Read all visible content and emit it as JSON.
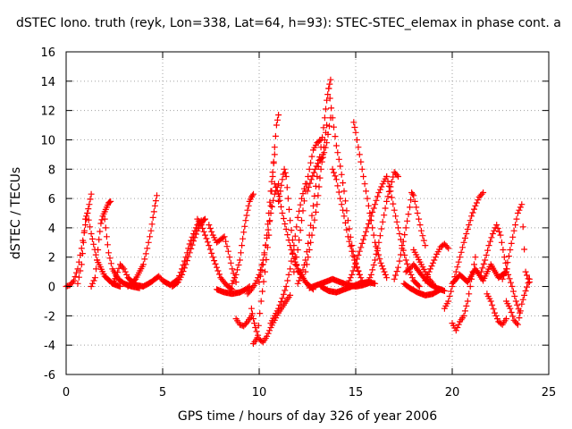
{
  "title": "dSTEC Iono. truth (reyk, Lon=338, Lat=64, h=93): STEC-STEC_elemax in phase cont. a",
  "chart_data": {
    "type": "scatter",
    "title": "dSTEC Iono. truth (reyk, Lon=338, Lat=64, h=93): STEC-STEC_elemax in phase cont. a",
    "xlabel": "GPS time / hours of day 326 of year 2006",
    "ylabel": "dSTEC  / TECUs",
    "xlim": [
      0,
      25
    ],
    "ylim": [
      -6,
      16
    ],
    "xticks": [
      0,
      5,
      10,
      15,
      20,
      25
    ],
    "yticks": [
      -6,
      -4,
      -2,
      0,
      2,
      4,
      6,
      8,
      10,
      12,
      14,
      16
    ],
    "grid": true,
    "marker": "plus",
    "color": "#ff0000",
    "series": [
      {
        "x": [
          0.0,
          0.2,
          0.4,
          0.6,
          0.8,
          1.0,
          1.1,
          1.2,
          1.3
        ],
        "y": [
          0.0,
          0.1,
          0.4,
          1.2,
          2.6,
          4.2,
          5.0,
          5.6,
          6.3
        ]
      },
      {
        "x": [
          0.6,
          0.8,
          0.9,
          1.0,
          1.1,
          1.3,
          1.6,
          2.0,
          2.4,
          2.8
        ],
        "y": [
          0.2,
          1.5,
          3.0,
          4.6,
          5.0,
          3.6,
          1.8,
          0.7,
          0.2,
          0.0
        ]
      },
      {
        "x": [
          1.3,
          1.5,
          1.6,
          1.7,
          1.8,
          1.9,
          2.0,
          2.1,
          2.2,
          2.3
        ],
        "y": [
          0.0,
          0.6,
          1.8,
          3.2,
          4.3,
          4.8,
          5.1,
          5.4,
          5.7,
          5.8
        ]
      },
      {
        "x": [
          2.0,
          2.1,
          2.2,
          2.4,
          2.7,
          3.0,
          3.4,
          3.8
        ],
        "y": [
          4.6,
          3.4,
          2.3,
          1.2,
          0.5,
          0.2,
          0.0,
          -0.1
        ]
      },
      {
        "x": [
          2.4,
          2.6,
          2.8,
          3.0,
          3.2,
          3.6,
          4.0
        ],
        "y": [
          0.2,
          0.7,
          1.5,
          1.2,
          0.6,
          0.1,
          0.0
        ]
      },
      {
        "x": [
          3.2,
          3.6,
          4.0,
          4.2,
          4.4,
          4.5,
          4.6,
          4.7
        ],
        "y": [
          0.0,
          0.5,
          1.5,
          2.6,
          3.8,
          4.7,
          5.5,
          6.2
        ]
      },
      {
        "x": [
          4.0,
          4.4,
          4.8,
          5.0,
          5.4,
          5.8,
          6.0,
          6.2,
          6.4,
          6.6,
          6.8,
          7.0
        ],
        "y": [
          0.0,
          0.3,
          0.7,
          0.4,
          0.1,
          0.5,
          1.2,
          2.0,
          2.9,
          3.6,
          4.2,
          4.5
        ]
      },
      {
        "x": [
          5.5,
          5.8,
          6.0,
          6.2,
          6.4,
          6.6,
          6.8,
          7.0,
          7.1,
          7.2
        ],
        "y": [
          0.0,
          0.3,
          0.8,
          1.5,
          2.3,
          3.1,
          3.8,
          4.3,
          4.5,
          4.6
        ]
      },
      {
        "x": [
          6.8,
          7.0,
          7.2,
          7.4,
          7.6,
          7.8,
          8.0,
          8.3,
          8.6
        ],
        "y": [
          4.6,
          4.2,
          3.5,
          2.8,
          2.0,
          1.3,
          0.6,
          0.1,
          -0.2
        ]
      },
      {
        "x": [
          7.4,
          7.6,
          7.8,
          8.0,
          8.2,
          8.4,
          8.6,
          8.8
        ],
        "y": [
          4.2,
          3.5,
          3.0,
          3.2,
          3.4,
          2.4,
          1.2,
          0.3
        ]
      },
      {
        "x": [
          7.8,
          8.2,
          8.6,
          9.0,
          9.3,
          9.5
        ],
        "y": [
          -0.2,
          -0.4,
          -0.5,
          -0.4,
          -0.2,
          0.0
        ]
      },
      {
        "x": [
          8.6,
          8.8,
          9.0,
          9.1,
          9.2,
          9.3,
          9.4,
          9.5,
          9.6,
          9.7
        ],
        "y": [
          0.2,
          0.8,
          1.8,
          2.8,
          3.7,
          4.5,
          5.2,
          5.8,
          6.1,
          6.3
        ]
      },
      {
        "x": [
          8.8,
          9.0,
          9.2,
          9.4,
          9.6
        ],
        "y": [
          -2.2,
          -2.6,
          -2.7,
          -2.4,
          -2.0
        ]
      },
      {
        "x": [
          9.4,
          9.6,
          9.8,
          10.0,
          10.2,
          10.4,
          10.6,
          10.8,
          11.0
        ],
        "y": [
          -0.5,
          -0.2,
          0.2,
          0.8,
          1.8,
          3.3,
          5.0,
          6.3,
          7.0
        ]
      },
      {
        "x": [
          9.6,
          9.7,
          9.8,
          10.0,
          10.2,
          10.4,
          10.6,
          10.8,
          11.0,
          11.2,
          11.4,
          11.6
        ],
        "y": [
          -1.5,
          -2.2,
          -2.8,
          -3.6,
          -3.8,
          -3.4,
          -2.8,
          -2.3,
          -1.8,
          -1.4,
          -1.0,
          -0.6
        ]
      },
      {
        "x": [
          9.7,
          9.9,
          10.1,
          10.3,
          10.5,
          10.6,
          10.7,
          10.8,
          10.9,
          11.0
        ],
        "y": [
          -3.9,
          -3.5,
          -1.0,
          1.0,
          3.5,
          5.5,
          7.5,
          9.5,
          11.0,
          11.7
        ]
      },
      {
        "x": [
          10.0,
          10.2,
          10.4,
          10.5,
          10.6,
          10.7,
          10.8
        ],
        "y": [
          0.3,
          1.5,
          3.5,
          5.0,
          6.5,
          7.8,
          9.0
        ]
      },
      {
        "x": [
          10.8,
          11.0,
          11.2,
          11.4,
          11.6,
          11.8,
          12.0,
          12.4,
          12.8
        ],
        "y": [
          7.0,
          6.3,
          5.0,
          3.9,
          2.8,
          1.9,
          1.2,
          0.3,
          -0.2
        ]
      },
      {
        "x": [
          11.0,
          11.1,
          11.2,
          11.3,
          11.4,
          11.5,
          11.6,
          11.8,
          12.0
        ],
        "y": [
          5.8,
          6.5,
          7.3,
          8.0,
          7.5,
          6.0,
          4.5,
          2.5,
          1.0
        ]
      },
      {
        "x": [
          10.6,
          10.8,
          11.0,
          11.2,
          11.4,
          11.6,
          11.8,
          12.0,
          12.2,
          12.4
        ],
        "y": [
          -2.5,
          -2.0,
          -1.5,
          -0.8,
          0.0,
          1.2,
          2.8,
          4.7,
          6.0,
          7.0
        ]
      },
      {
        "x": [
          11.8,
          12.0,
          12.2,
          12.4,
          12.6,
          12.8,
          13.0,
          13.2
        ],
        "y": [
          1.0,
          2.5,
          4.5,
          6.5,
          8.0,
          9.3,
          9.8,
          10.0
        ]
      },
      {
        "x": [
          12.0,
          12.2,
          12.4,
          12.6,
          12.8,
          13.0,
          13.2,
          13.4,
          13.5,
          13.6,
          13.7
        ],
        "y": [
          0.2,
          0.8,
          1.8,
          3.5,
          5.5,
          7.5,
          9.5,
          11.5,
          12.7,
          13.5,
          14.1
        ]
      },
      {
        "x": [
          12.4,
          12.6,
          12.8,
          13.0,
          13.1,
          13.2,
          13.3,
          13.4,
          13.5
        ],
        "y": [
          1.0,
          2.5,
          4.0,
          5.6,
          6.8,
          8.0,
          9.0,
          10.0,
          11.0
        ]
      },
      {
        "x": [
          12.5,
          12.7,
          12.9,
          13.1,
          13.3,
          13.5,
          13.7
        ],
        "y": [
          6.5,
          7.3,
          8.0,
          8.6,
          8.8,
          9.8,
          11.5
        ]
      },
      {
        "x": [
          13.6,
          13.8,
          14.0,
          14.2,
          14.4,
          14.6,
          14.8,
          15.0,
          15.2
        ],
        "y": [
          13.5,
          11.5,
          9.6,
          8.2,
          6.5,
          4.5,
          2.8,
          1.6,
          0.8
        ]
      },
      {
        "x": [
          13.8,
          14.0,
          14.2,
          14.4,
          14.6,
          14.8,
          15.0,
          15.2,
          15.4
        ],
        "y": [
          8.0,
          7.3,
          6.0,
          4.8,
          3.4,
          2.4,
          1.5,
          0.8,
          0.2
        ]
      },
      {
        "x": [
          12.6,
          13.0,
          13.4,
          13.8,
          14.2,
          14.6,
          15.0,
          15.4,
          15.8
        ],
        "y": [
          -0.1,
          0.1,
          0.3,
          0.5,
          0.3,
          0.1,
          0.0,
          0.1,
          0.3
        ]
      },
      {
        "x": [
          13.2,
          13.6,
          14.0,
          14.4,
          14.8,
          15.2,
          15.6,
          16.0
        ],
        "y": [
          0.0,
          -0.3,
          -0.4,
          -0.2,
          0.0,
          0.2,
          0.3,
          0.2
        ]
      },
      {
        "x": [
          14.9,
          15.0,
          15.2,
          15.4,
          15.6,
          15.8,
          16.0,
          16.3,
          16.6
        ],
        "y": [
          11.2,
          10.5,
          9.0,
          7.5,
          6.0,
          4.5,
          3.0,
          1.6,
          0.6
        ]
      },
      {
        "x": [
          14.6,
          14.8,
          15.0,
          15.2,
          15.4,
          15.6,
          15.8,
          16.0,
          16.2,
          16.4,
          16.6
        ],
        "y": [
          0.2,
          0.8,
          1.6,
          2.4,
          3.2,
          4.0,
          4.8,
          5.6,
          6.4,
          7.0,
          7.5
        ]
      },
      {
        "x": [
          15.6,
          15.8,
          16.0,
          16.2,
          16.4,
          16.6,
          16.8,
          17.0,
          17.2
        ],
        "y": [
          0.2,
          0.8,
          1.8,
          3.0,
          4.4,
          5.8,
          6.8,
          7.8,
          7.5
        ]
      },
      {
        "x": [
          16.6,
          16.8,
          17.0,
          17.2,
          17.4,
          17.6,
          17.8,
          18.0,
          18.3
        ],
        "y": [
          7.5,
          6.5,
          5.2,
          4.0,
          2.8,
          1.8,
          1.0,
          0.4,
          0.0
        ]
      },
      {
        "x": [
          17.0,
          17.2,
          17.4,
          17.6,
          17.8,
          17.9,
          18.0,
          18.2,
          18.4,
          18.6
        ],
        "y": [
          0.5,
          1.3,
          2.6,
          4.0,
          5.4,
          6.4,
          6.2,
          5.0,
          3.8,
          2.8
        ]
      },
      {
        "x": [
          17.6,
          17.8,
          18.0,
          18.4,
          18.8,
          19.2,
          19.6
        ],
        "y": [
          1.0,
          1.2,
          1.5,
          0.8,
          0.2,
          -0.1,
          -0.3
        ]
      },
      {
        "x": [
          17.5,
          17.8,
          18.2,
          18.6,
          19.0,
          19.4
        ],
        "y": [
          0.2,
          -0.1,
          -0.4,
          -0.6,
          -0.5,
          -0.2
        ]
      },
      {
        "x": [
          18.0,
          18.2,
          18.4,
          18.6,
          18.8,
          19.0
        ],
        "y": [
          2.5,
          2.0,
          1.5,
          1.0,
          0.5,
          0.2
        ]
      },
      {
        "x": [
          18.6,
          18.8,
          19.0,
          19.2,
          19.4,
          19.6,
          19.8
        ],
        "y": [
          0.4,
          1.0,
          1.6,
          2.2,
          2.7,
          2.9,
          2.6
        ]
      },
      {
        "x": [
          19.6,
          19.8,
          20.0,
          20.2,
          20.4,
          20.6,
          20.8,
          21.0,
          21.2,
          21.4,
          21.6
        ],
        "y": [
          -1.5,
          -1.0,
          0.0,
          1.0,
          2.0,
          3.0,
          3.9,
          4.8,
          5.5,
          6.1,
          6.4
        ]
      },
      {
        "x": [
          20.0,
          20.2,
          20.4,
          20.6,
          20.8,
          21.0,
          21.2
        ],
        "y": [
          -2.5,
          -3.0,
          -2.4,
          -2.0,
          -1.0,
          0.5,
          2.0
        ]
      },
      {
        "x": [
          20.0,
          20.4,
          20.8,
          21.2,
          21.6,
          22.0,
          22.4,
          22.8
        ],
        "y": [
          0.2,
          0.8,
          0.3,
          1.2,
          0.4,
          1.5,
          0.6,
          1.0
        ]
      },
      {
        "x": [
          21.5,
          21.7,
          21.9,
          22.1,
          22.3,
          22.5,
          22.7,
          22.9,
          23.1,
          23.3,
          23.5
        ],
        "y": [
          1.0,
          1.8,
          2.8,
          3.6,
          4.2,
          3.5,
          2.0,
          0.8,
          0.0,
          -1.0,
          -1.8
        ]
      },
      {
        "x": [
          21.8,
          22.0,
          22.2,
          22.4,
          22.6,
          22.8
        ],
        "y": [
          -0.5,
          -1.0,
          -1.8,
          -2.4,
          -2.6,
          -2.2
        ]
      },
      {
        "x": [
          22.6,
          22.8,
          23.0,
          23.2,
          23.4,
          23.6,
          23.8,
          24.0
        ],
        "y": [
          0.5,
          1.2,
          2.5,
          3.8,
          5.0,
          5.6,
          1.0,
          0.3
        ]
      },
      {
        "x": [
          22.8,
          23.0,
          23.2,
          23.4,
          23.6,
          23.8,
          24.0
        ],
        "y": [
          -1.0,
          -1.5,
          -2.3,
          -2.6,
          -1.2,
          -0.3,
          0.5
        ]
      }
    ]
  }
}
